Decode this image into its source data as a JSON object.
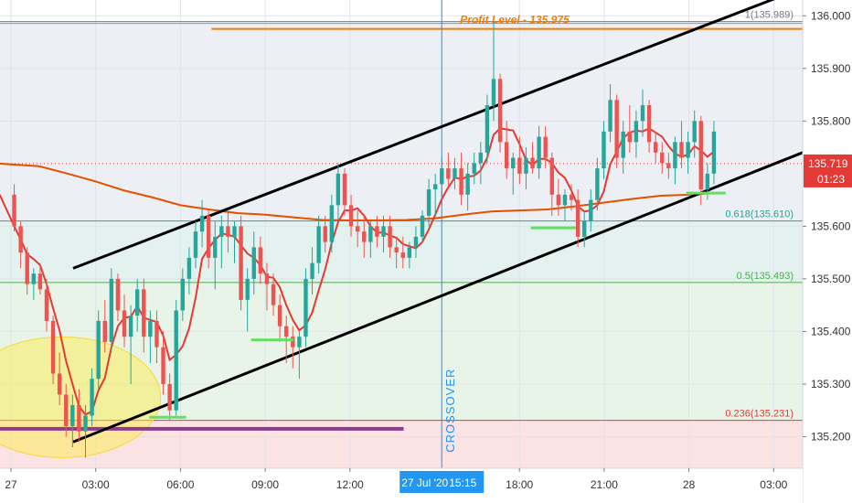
{
  "chart_data": {
    "type": "candlestick",
    "ylim": [
      135.14,
      136.03
    ],
    "x_tick_labels": [
      {
        "t": 0,
        "label": "27"
      },
      {
        "t": 3,
        "label": "03:00"
      },
      {
        "t": 6,
        "label": "06:00"
      },
      {
        "t": 9,
        "label": "09:00"
      },
      {
        "t": 12,
        "label": "12:00"
      },
      {
        "t": 15.25,
        "label": "27 Jul '20",
        "label2": "15:15"
      },
      {
        "t": 18,
        "label": "18:00"
      },
      {
        "t": 21,
        "label": "21:00"
      },
      {
        "t": 24,
        "label": "28"
      },
      {
        "t": 27,
        "label": "03:00"
      }
    ],
    "y_ticks": [
      "136.000",
      "135.900",
      "135.800",
      "135.600",
      "135.500",
      "135.400",
      "135.300",
      "135.200"
    ],
    "price_label": {
      "value": "135.719",
      "countdown": "01:23",
      "color": "#e53935"
    },
    "fib_levels": [
      {
        "label": "1(135.989)",
        "value": 135.989,
        "color": "#787b86"
      },
      {
        "label": "0.618(135.610)",
        "value": 135.61,
        "color": "#26a69a"
      },
      {
        "label": "0.5(135.493)",
        "value": 135.493,
        "color": "#4caf50"
      },
      {
        "label": "0.236(135.231)",
        "value": 135.231,
        "color": "#e53935"
      }
    ],
    "profit_level": {
      "label": "Profit Level - 135.975",
      "value": 135.975,
      "color": "#f57c00"
    },
    "crossover_label": "CROSSOVER",
    "colors": {
      "up": "#26a69a",
      "down": "#ef5350",
      "ma": "#e53935",
      "ma_slow": "#e65100",
      "trend": "#000000",
      "support": "#66dd66",
      "base": "#8e3a8e"
    },
    "candles": [
      [
        135.66,
        135.68,
        135.59,
        135.6
      ],
      [
        135.6,
        135.61,
        135.52,
        135.55
      ],
      [
        135.55,
        135.56,
        135.47,
        135.49
      ],
      [
        135.49,
        135.52,
        135.46,
        135.51
      ],
      [
        135.51,
        135.53,
        135.47,
        135.48
      ],
      [
        135.48,
        135.5,
        135.4,
        135.42
      ],
      [
        135.42,
        135.43,
        135.3,
        135.32
      ],
      [
        135.32,
        135.36,
        135.26,
        135.28
      ],
      [
        135.28,
        135.3,
        135.2,
        135.22
      ],
      [
        135.22,
        135.28,
        135.18,
        135.26
      ],
      [
        135.26,
        135.29,
        135.19,
        135.21
      ],
      [
        135.21,
        135.26,
        135.16,
        135.24
      ],
      [
        135.24,
        135.33,
        135.22,
        135.31
      ],
      [
        135.31,
        135.44,
        135.29,
        135.42
      ],
      [
        135.42,
        135.46,
        135.36,
        135.38
      ],
      [
        135.38,
        135.52,
        135.36,
        135.5
      ],
      [
        135.5,
        135.51,
        135.42,
        135.44
      ],
      [
        135.44,
        135.47,
        135.37,
        135.39
      ],
      [
        135.39,
        135.45,
        135.3,
        135.43
      ],
      [
        135.43,
        135.5,
        135.4,
        135.48
      ],
      [
        135.48,
        135.5,
        135.36,
        135.39
      ],
      [
        135.39,
        135.44,
        135.34,
        135.42
      ],
      [
        135.42,
        135.44,
        135.34,
        135.37
      ],
      [
        135.37,
        135.4,
        135.28,
        135.3
      ],
      [
        135.3,
        135.32,
        135.23,
        135.25
      ],
      [
        135.25,
        135.46,
        135.24,
        135.44
      ],
      [
        135.44,
        135.52,
        135.42,
        135.5
      ],
      [
        135.5,
        135.56,
        135.47,
        135.54
      ],
      [
        135.54,
        135.61,
        135.52,
        135.59
      ],
      [
        135.59,
        135.65,
        135.56,
        135.62
      ],
      [
        135.62,
        135.63,
        135.52,
        135.54
      ],
      [
        135.54,
        135.61,
        135.48,
        135.58
      ],
      [
        135.58,
        135.62,
        135.52,
        135.6
      ],
      [
        135.6,
        135.63,
        135.55,
        135.58
      ],
      [
        135.58,
        135.61,
        135.53,
        135.6
      ],
      [
        135.6,
        135.62,
        135.44,
        135.46
      ],
      [
        135.46,
        135.52,
        135.4,
        135.5
      ],
      [
        135.5,
        135.59,
        135.47,
        135.56
      ],
      [
        135.56,
        135.58,
        135.49,
        135.51
      ],
      [
        135.51,
        135.53,
        135.44,
        135.49
      ],
      [
        135.49,
        135.51,
        135.43,
        135.45
      ],
      [
        135.45,
        135.47,
        135.38,
        135.41
      ],
      [
        135.41,
        135.43,
        135.34,
        135.39
      ],
      [
        135.39,
        135.41,
        135.33,
        135.37
      ],
      [
        135.37,
        135.4,
        135.31,
        135.39
      ],
      [
        135.39,
        135.52,
        135.37,
        135.5
      ],
      [
        135.5,
        135.56,
        135.47,
        135.53
      ],
      [
        135.53,
        135.62,
        135.51,
        135.6
      ],
      [
        135.6,
        135.62,
        135.55,
        135.57
      ],
      [
        135.57,
        135.66,
        135.55,
        135.64
      ],
      [
        135.64,
        135.72,
        135.61,
        135.7
      ],
      [
        135.7,
        135.71,
        135.62,
        135.64
      ],
      [
        135.64,
        135.66,
        135.58,
        135.6
      ],
      [
        135.6,
        135.63,
        135.56,
        135.59
      ],
      [
        135.59,
        135.62,
        135.54,
        135.57
      ],
      [
        135.57,
        135.61,
        135.54,
        135.6
      ],
      [
        135.6,
        135.62,
        135.56,
        135.58
      ],
      [
        135.58,
        135.62,
        135.55,
        135.6
      ],
      [
        135.6,
        135.62,
        135.54,
        135.56
      ],
      [
        135.56,
        135.58,
        135.52,
        135.55
      ],
      [
        135.55,
        135.58,
        135.52,
        135.54
      ],
      [
        135.54,
        135.57,
        135.52,
        135.56
      ],
      [
        135.56,
        135.6,
        135.54,
        135.58
      ],
      [
        135.58,
        135.63,
        135.57,
        135.62
      ],
      [
        135.62,
        135.69,
        135.6,
        135.67
      ],
      [
        135.67,
        135.7,
        135.62,
        135.68
      ],
      [
        135.68,
        135.73,
        135.64,
        135.71
      ],
      [
        135.71,
        135.74,
        135.67,
        135.69
      ],
      [
        135.69,
        135.73,
        135.67,
        135.71
      ],
      [
        135.71,
        135.74,
        135.64,
        135.66
      ],
      [
        135.66,
        135.72,
        135.63,
        135.7
      ],
      [
        135.7,
        135.74,
        135.68,
        135.72
      ],
      [
        135.72,
        135.76,
        135.68,
        135.74
      ],
      [
        135.74,
        135.85,
        135.72,
        135.83
      ],
      [
        135.83,
        135.99,
        135.8,
        135.88
      ],
      [
        135.88,
        135.89,
        135.74,
        135.76
      ],
      [
        135.76,
        135.8,
        135.69,
        135.71
      ],
      [
        135.71,
        135.74,
        135.66,
        135.73
      ],
      [
        135.73,
        135.77,
        135.68,
        135.7
      ],
      [
        135.7,
        135.75,
        135.67,
        135.73
      ],
      [
        135.73,
        135.76,
        135.7,
        135.71
      ],
      [
        135.71,
        135.79,
        135.69,
        135.77
      ],
      [
        135.77,
        135.79,
        135.71,
        135.73
      ],
      [
        135.73,
        135.74,
        135.62,
        135.66
      ],
      [
        135.66,
        135.69,
        135.62,
        135.64
      ],
      [
        135.64,
        135.67,
        135.61,
        135.66
      ],
      [
        135.66,
        135.68,
        135.63,
        135.65
      ],
      [
        135.65,
        135.67,
        135.56,
        135.58
      ],
      [
        135.58,
        135.63,
        135.56,
        135.61
      ],
      [
        135.61,
        135.67,
        135.59,
        135.65
      ],
      [
        135.65,
        135.73,
        135.63,
        135.71
      ],
      [
        135.71,
        135.8,
        135.69,
        135.78
      ],
      [
        135.78,
        135.87,
        135.76,
        135.84
      ],
      [
        135.84,
        135.85,
        135.71,
        135.73
      ],
      [
        135.73,
        135.8,
        135.7,
        135.78
      ],
      [
        135.78,
        135.83,
        135.74,
        135.76
      ],
      [
        135.76,
        135.82,
        135.73,
        135.8
      ],
      [
        135.8,
        135.86,
        135.77,
        135.83
      ],
      [
        135.83,
        135.84,
        135.74,
        135.76
      ],
      [
        135.76,
        135.78,
        135.72,
        135.74
      ],
      [
        135.74,
        135.76,
        135.7,
        135.72
      ],
      [
        135.72,
        135.74,
        135.69,
        135.71
      ],
      [
        135.71,
        135.77,
        135.68,
        135.76
      ],
      [
        135.76,
        135.8,
        135.71,
        135.73
      ],
      [
        135.73,
        135.78,
        135.7,
        135.76
      ],
      [
        135.76,
        135.82,
        135.73,
        135.8
      ],
      [
        135.8,
        135.81,
        135.64,
        135.67
      ],
      [
        135.67,
        135.72,
        135.65,
        135.7
      ],
      [
        135.7,
        135.8,
        135.68,
        135.78
      ]
    ]
  }
}
